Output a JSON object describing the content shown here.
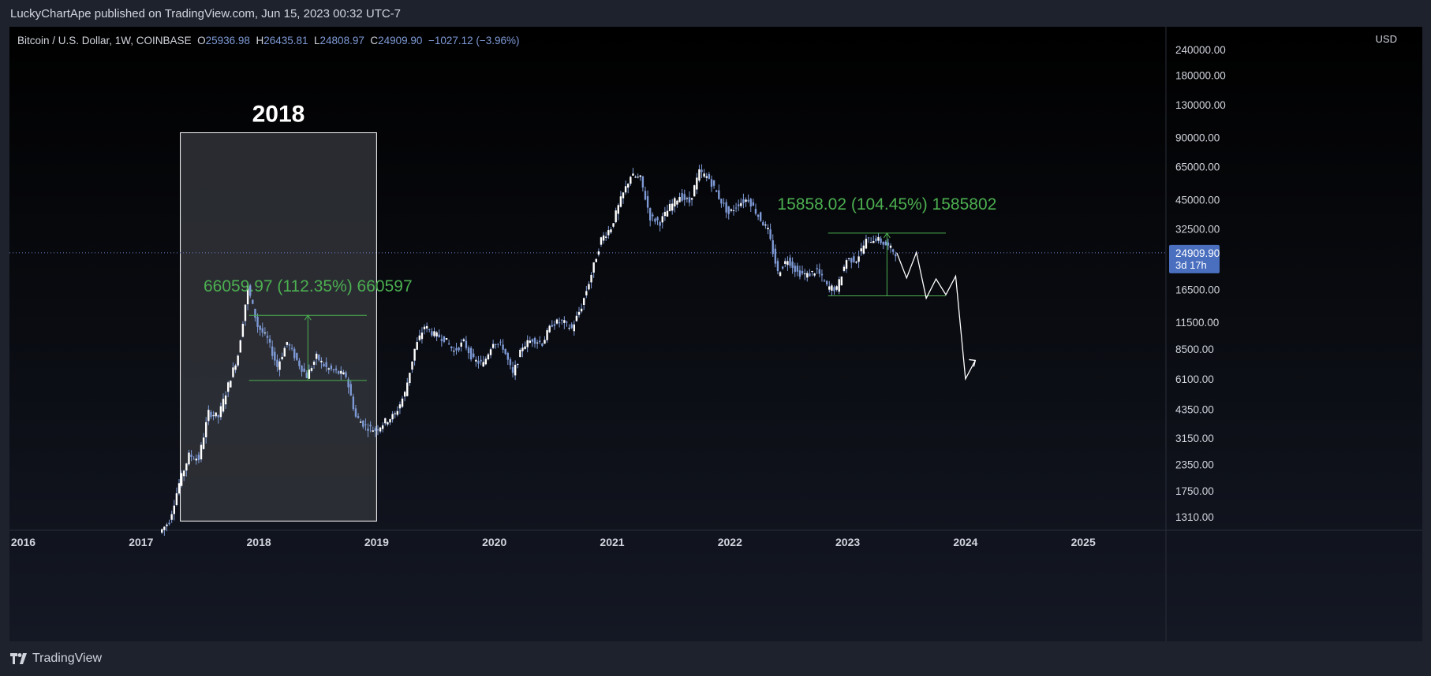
{
  "header": {
    "publisher_line": "LuckyChartApe published on TradingView.com, Jun 15, 2023 00:32 UTC-7"
  },
  "footer": {
    "brand": "TradingView"
  },
  "colors": {
    "background": "#000000",
    "candle": "#7e9ad6",
    "projection": "#ffffff",
    "measure": "#4caf50",
    "price_line": "#6f7fc9",
    "price_label_bg": "#4a6fbf",
    "box_fill": "#303338"
  },
  "legend": {
    "symbol": "Bitcoin / U.S. Dollar, 1W, COINBASE",
    "o_key": "O",
    "o_val": "25936.98",
    "h_key": "H",
    "h_val": "26435.81",
    "l_key": "L",
    "l_val": "24808.97",
    "c_key": "C",
    "c_val": "24909.90",
    "change": "−1027.12 (−3.96%)"
  },
  "annotations": {
    "box_title": "2018",
    "measure_2018": "66059.97 (112.35%) 660597",
    "measure_2023": "15858.02 (104.45%) 1585802"
  },
  "chart_data": {
    "type": "candlestick",
    "symbol": "Bitcoin / U.S. Dollar, 1W, COINBASE",
    "y_scale": "log",
    "currency": "USD",
    "y_ticks": [
      "240000.00",
      "180000.00",
      "130000.00",
      "90000.00",
      "65000.00",
      "45000.00",
      "32500.00",
      "24909.90",
      "16500.00",
      "11500.00",
      "8500.00",
      "6100.00",
      "4350.00",
      "3150.00",
      "2350.00",
      "1750.00",
      "1310.00"
    ],
    "x_ticks": [
      "2016",
      "2017",
      "2018",
      "2019",
      "2020",
      "2021",
      "2022",
      "2023",
      "2024",
      "2025"
    ],
    "last_price": 24909.9,
    "last_price_label": "24909.90",
    "countdown": "3d 17h",
    "path_points": [
      [
        "2017-03",
        1100
      ],
      [
        "2017-04",
        1250
      ],
      [
        "2017-05",
        1900
      ],
      [
        "2017-06",
        2600
      ],
      [
        "2017-07",
        2500
      ],
      [
        "2017-08",
        4200
      ],
      [
        "2017-09",
        4000
      ],
      [
        "2017-10",
        5700
      ],
      [
        "2017-11",
        8000
      ],
      [
        "2017-12",
        17000
      ],
      [
        "2018-01",
        11000
      ],
      [
        "2018-02",
        9500
      ],
      [
        "2018-03",
        7000
      ],
      [
        "2018-04",
        9200
      ],
      [
        "2018-05",
        7500
      ],
      [
        "2018-06",
        6300
      ],
      [
        "2018-07",
        7800
      ],
      [
        "2018-08",
        6900
      ],
      [
        "2018-09",
        6600
      ],
      [
        "2018-10",
        6300
      ],
      [
        "2018-11",
        4000
      ],
      [
        "2018-12",
        3600
      ],
      [
        "2019-01",
        3450
      ],
      [
        "2019-02",
        3800
      ],
      [
        "2019-03",
        4100
      ],
      [
        "2019-04",
        5200
      ],
      [
        "2019-05",
        8500
      ],
      [
        "2019-06",
        11000
      ],
      [
        "2019-07",
        10000
      ],
      [
        "2019-08",
        9600
      ],
      [
        "2019-09",
        8300
      ],
      [
        "2019-10",
        9200
      ],
      [
        "2019-11",
        7500
      ],
      [
        "2019-12",
        7200
      ],
      [
        "2020-01",
        9300
      ],
      [
        "2020-02",
        8700
      ],
      [
        "2020-03",
        6400
      ],
      [
        "2020-04",
        8800
      ],
      [
        "2020-05",
        9500
      ],
      [
        "2020-06",
        9100
      ],
      [
        "2020-07",
        11300
      ],
      [
        "2020-08",
        11600
      ],
      [
        "2020-09",
        10700
      ],
      [
        "2020-10",
        13700
      ],
      [
        "2020-11",
        19600
      ],
      [
        "2020-12",
        29000
      ],
      [
        "2021-01",
        33000
      ],
      [
        "2021-02",
        45000
      ],
      [
        "2021-03",
        58800
      ],
      [
        "2021-04",
        57000
      ],
      [
        "2021-05",
        37000
      ],
      [
        "2021-06",
        35000
      ],
      [
        "2021-07",
        41500
      ],
      [
        "2021-08",
        47000
      ],
      [
        "2021-09",
        43800
      ],
      [
        "2021-10",
        61300
      ],
      [
        "2021-11",
        57000
      ],
      [
        "2021-12",
        46300
      ],
      [
        "2022-01",
        38500
      ],
      [
        "2022-02",
        43200
      ],
      [
        "2022-03",
        45500
      ],
      [
        "2022-04",
        37700
      ],
      [
        "2022-05",
        31800
      ],
      [
        "2022-06",
        19900
      ],
      [
        "2022-07",
        23300
      ],
      [
        "2022-08",
        20000
      ],
      [
        "2022-09",
        19400
      ],
      [
        "2022-10",
        20500
      ],
      [
        "2022-11",
        17100
      ],
      [
        "2022-12",
        16600
      ],
      [
        "2023-01",
        23100
      ],
      [
        "2023-02",
        23100
      ],
      [
        "2023-03",
        28500
      ],
      [
        "2023-04",
        29200
      ],
      [
        "2023-05",
        27200
      ],
      [
        "2023-06",
        24900
      ]
    ],
    "projection": [
      [
        "2023-06",
        24909
      ],
      [
        "2023-07",
        18800
      ],
      [
        "2023-08",
        25000
      ],
      [
        "2023-09",
        15000
      ],
      [
        "2023-10",
        18600
      ],
      [
        "2023-11",
        15600
      ],
      [
        "2023-12",
        19200
      ],
      [
        "2024-01",
        6100
      ],
      [
        "2024-02",
        7500
      ]
    ],
    "measure_2018": {
      "x_from": "2017-12",
      "x_to": "2018-12",
      "low": 6000,
      "high": 12400,
      "label": "66059.97 (112.35%) 660597"
    },
    "measure_2023": {
      "x_from": "2022-11",
      "x_to": "2023-11",
      "low": 15400,
      "high": 31000,
      "label": "15858.02 (104.45%) 1585802"
    },
    "box_2018": {
      "x_from": "2017-05",
      "x_to": "2019-01",
      "low": 1250,
      "high": 95000,
      "label": "2018"
    }
  }
}
